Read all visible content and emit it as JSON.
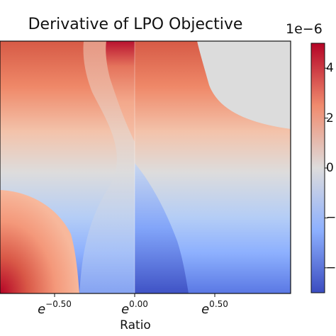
{
  "chart_data": {
    "type": "heatmap",
    "title": "Derivative of LPO Objective",
    "xlabel": "Ratio",
    "ylabel": "",
    "x_scale": "log (base e)",
    "x_ticks": [
      {
        "base": "e",
        "exp": "−0.50",
        "value": -0.5
      },
      {
        "base": "e",
        "exp": "0.00",
        "value": 0.0
      },
      {
        "base": "e",
        "exp": "0.50",
        "value": 0.5
      }
    ],
    "xlim": [
      -1.0,
      1.0
    ],
    "colormap": "coolwarm",
    "colorbar": {
      "offset_label": "1e−6",
      "ticks": [
        {
          "label": "4",
          "value": 4
        },
        {
          "label": "2",
          "value": 2
        },
        {
          "label": "0",
          "value": 0
        },
        {
          "label": "−",
          "value": -2
        },
        {
          "label": "−",
          "value": -4
        }
      ],
      "range": [
        -5,
        5
      ]
    },
    "colors": {
      "cool_end": "#3b4cc0",
      "neutral": "#dddddd",
      "warm_end": "#b40426"
    }
  }
}
